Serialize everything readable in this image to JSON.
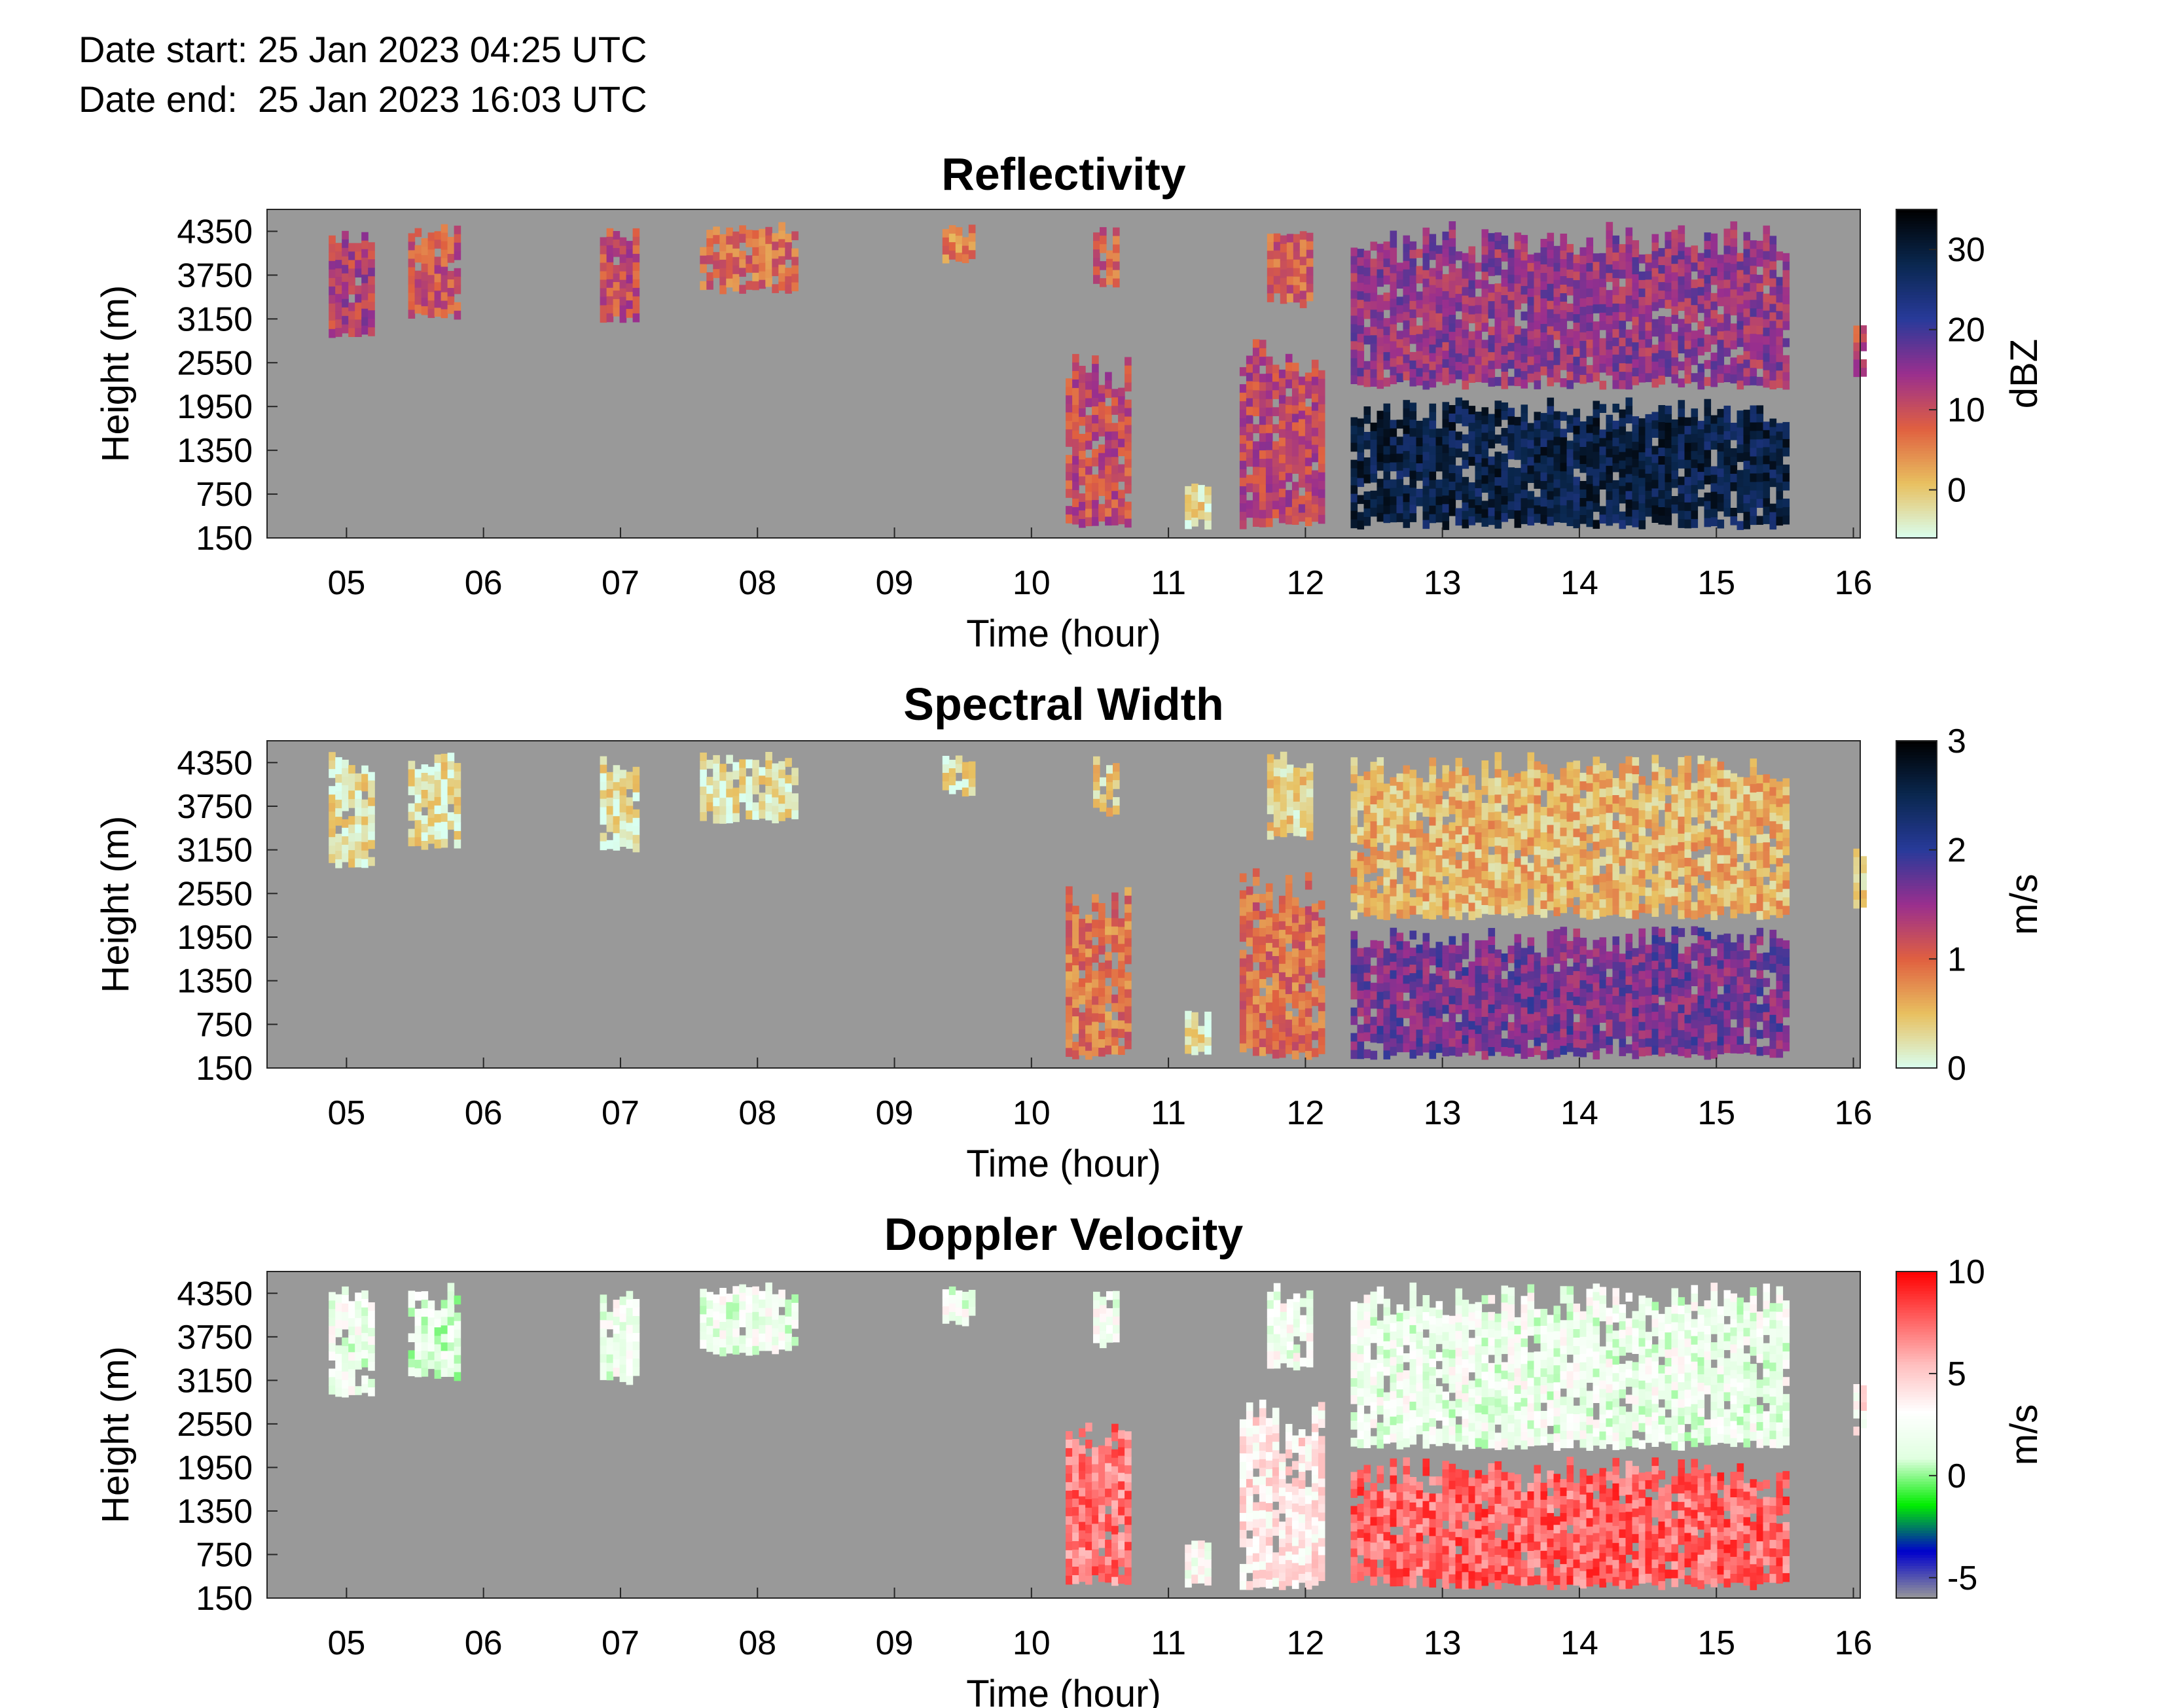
{
  "header": {
    "date_start": "Date start: 25 Jan 2023 04:25 UTC",
    "date_end": "Date end:  25 Jan 2023 16:03 UTC"
  },
  "chart_data": [
    {
      "type": "heatmap",
      "title": "Reflectivity",
      "xlabel": "Time (hour)",
      "ylabel": "Height (m)",
      "xlim": [
        4.42,
        16.05
      ],
      "ylim": [
        150,
        4650
      ],
      "xticks": [
        "05",
        "06",
        "07",
        "08",
        "09",
        "10",
        "11",
        "12",
        "13",
        "14",
        "15",
        "16"
      ],
      "yticks": [
        "150",
        "750",
        "1350",
        "1950",
        "2550",
        "3150",
        "3750",
        "4350"
      ],
      "colorbar": {
        "label": "dBZ",
        "range": [
          -6,
          35
        ],
        "ticks": [
          "0",
          "10",
          "20",
          "30"
        ],
        "colors": [
          "#d9fff0",
          "#e8c060",
          "#e06040",
          "#9a2f8e",
          "#283a9a",
          "#0a2850",
          "#000000"
        ]
      },
      "background": "#999999",
      "echoes": [
        {
          "t0": 4.87,
          "t1": 5.18,
          "h0": 3000,
          "h1": 4500,
          "level": 0.45
        },
        {
          "t0": 5.45,
          "t1": 5.82,
          "h0": 3250,
          "h1": 4500,
          "level": 0.38
        },
        {
          "t0": 6.85,
          "t1": 7.12,
          "h0": 3200,
          "h1": 4450,
          "level": 0.4
        },
        {
          "t0": 7.58,
          "t1": 8.25,
          "h0": 3600,
          "h1": 4500,
          "level": 0.32
        },
        {
          "t0": 9.35,
          "t1": 9.58,
          "h0": 4000,
          "h1": 4450,
          "level": 0.28
        },
        {
          "t0": 10.45,
          "t1": 10.62,
          "h0": 3700,
          "h1": 4450,
          "level": 0.35
        },
        {
          "t0": 10.25,
          "t1": 10.7,
          "h0": 380,
          "h1": 2700,
          "level": 0.4
        },
        {
          "t0": 11.12,
          "t1": 11.28,
          "h0": 380,
          "h1": 950,
          "level": 0.1
        },
        {
          "t0": 11.52,
          "t1": 12.1,
          "h0": 380,
          "h1": 2900,
          "level": 0.42
        },
        {
          "t0": 11.72,
          "t1": 12.05,
          "h0": 3400,
          "h1": 4500,
          "level": 0.35
        },
        {
          "t0": 12.33,
          "t1": 15.52,
          "h0": 2300,
          "h1": 4500,
          "level": 0.5
        },
        {
          "t0": 12.33,
          "t1": 15.52,
          "h0": 380,
          "h1": 2100,
          "level": 0.85
        },
        {
          "t0": 16.0,
          "t1": 16.05,
          "h0": 2400,
          "h1": 3200,
          "level": 0.4
        }
      ]
    },
    {
      "type": "heatmap",
      "title": "Spectral Width",
      "xlabel": "Time (hour)",
      "ylabel": "Height (m)",
      "xlim": [
        4.42,
        16.05
      ],
      "ylim": [
        150,
        4650
      ],
      "xticks": [
        "05",
        "06",
        "07",
        "08",
        "09",
        "10",
        "11",
        "12",
        "13",
        "14",
        "15",
        "16"
      ],
      "yticks": [
        "150",
        "750",
        "1350",
        "1950",
        "2550",
        "3150",
        "3750",
        "4350"
      ],
      "colorbar": {
        "label": "m/s",
        "range": [
          0,
          3
        ],
        "ticks": [
          "0",
          "1",
          "2",
          "3"
        ],
        "colors": [
          "#d9fff0",
          "#e8c060",
          "#e06040",
          "#9a2f8e",
          "#283a9a",
          "#0a2850",
          "#000000"
        ]
      },
      "background": "#999999",
      "echoes": [
        {
          "t0": 4.87,
          "t1": 5.18,
          "h0": 3000,
          "h1": 4500,
          "level": 0.08
        },
        {
          "t0": 5.45,
          "t1": 5.82,
          "h0": 3250,
          "h1": 4500,
          "level": 0.08
        },
        {
          "t0": 6.85,
          "t1": 7.12,
          "h0": 3200,
          "h1": 4450,
          "level": 0.08
        },
        {
          "t0": 7.58,
          "t1": 8.25,
          "h0": 3600,
          "h1": 4500,
          "level": 0.08
        },
        {
          "t0": 9.35,
          "t1": 9.58,
          "h0": 4000,
          "h1": 4450,
          "level": 0.08
        },
        {
          "t0": 10.45,
          "t1": 10.62,
          "h0": 3700,
          "h1": 4450,
          "level": 0.12
        },
        {
          "t0": 10.25,
          "t1": 10.7,
          "h0": 380,
          "h1": 2700,
          "level": 0.3
        },
        {
          "t0": 11.12,
          "t1": 11.28,
          "h0": 380,
          "h1": 950,
          "level": 0.1
        },
        {
          "t0": 11.52,
          "t1": 12.1,
          "h0": 380,
          "h1": 2900,
          "level": 0.32
        },
        {
          "t0": 11.72,
          "t1": 12.05,
          "h0": 3400,
          "h1": 4500,
          "level": 0.12
        },
        {
          "t0": 12.33,
          "t1": 15.52,
          "h0": 2300,
          "h1": 4500,
          "level": 0.18
        },
        {
          "t0": 12.33,
          "t1": 15.52,
          "h0": 380,
          "h1": 2100,
          "level": 0.55
        },
        {
          "t0": 16.0,
          "t1": 16.05,
          "h0": 2400,
          "h1": 3200,
          "level": 0.1
        }
      ]
    },
    {
      "type": "heatmap",
      "title": "Doppler Velocity",
      "xlabel": "Time (hour)",
      "ylabel": "Height (m)",
      "xlim": [
        4.42,
        16.05
      ],
      "ylim": [
        150,
        4650
      ],
      "xticks": [
        "05",
        "06",
        "07",
        "08",
        "09",
        "10",
        "11",
        "12",
        "13",
        "14",
        "15",
        "16"
      ],
      "yticks": [
        "150",
        "750",
        "1350",
        "1950",
        "2550",
        "3150",
        "3750",
        "4350"
      ],
      "colorbar": {
        "label": "m/s",
        "range": [
          -6,
          10
        ],
        "ticks": [
          "-5",
          "0",
          "5",
          "10"
        ],
        "colors": [
          "#999999",
          "#0000cc",
          "#00ee00",
          "#e0ffe0",
          "#ffffff",
          "#ffc0c0",
          "#ff6060",
          "#ff0000"
        ]
      },
      "background": "#999999",
      "echoes": [
        {
          "t0": 4.87,
          "t1": 5.18,
          "h0": 3000,
          "h1": 4500,
          "level": 0.5
        },
        {
          "t0": 5.45,
          "t1": 5.82,
          "h0": 3250,
          "h1": 4500,
          "level": 0.47
        },
        {
          "t0": 6.85,
          "t1": 7.12,
          "h0": 3200,
          "h1": 4450,
          "level": 0.5
        },
        {
          "t0": 7.58,
          "t1": 8.25,
          "h0": 3600,
          "h1": 4500,
          "level": 0.5
        },
        {
          "t0": 9.35,
          "t1": 9.58,
          "h0": 4000,
          "h1": 4450,
          "level": 0.5
        },
        {
          "t0": 10.45,
          "t1": 10.62,
          "h0": 3700,
          "h1": 4450,
          "level": 0.52
        },
        {
          "t0": 10.25,
          "t1": 10.7,
          "h0": 380,
          "h1": 2700,
          "level": 0.82
        },
        {
          "t0": 11.12,
          "t1": 11.28,
          "h0": 380,
          "h1": 950,
          "level": 0.55
        },
        {
          "t0": 11.52,
          "t1": 12.1,
          "h0": 380,
          "h1": 2900,
          "level": 0.62
        },
        {
          "t0": 11.72,
          "t1": 12.05,
          "h0": 3400,
          "h1": 4500,
          "level": 0.52
        },
        {
          "t0": 12.33,
          "t1": 15.52,
          "h0": 2300,
          "h1": 4500,
          "level": 0.5
        },
        {
          "t0": 12.33,
          "t1": 15.52,
          "h0": 380,
          "h1": 2100,
          "level": 0.85
        },
        {
          "t0": 16.0,
          "t1": 16.05,
          "h0": 2400,
          "h1": 3200,
          "level": 0.6
        }
      ]
    }
  ]
}
